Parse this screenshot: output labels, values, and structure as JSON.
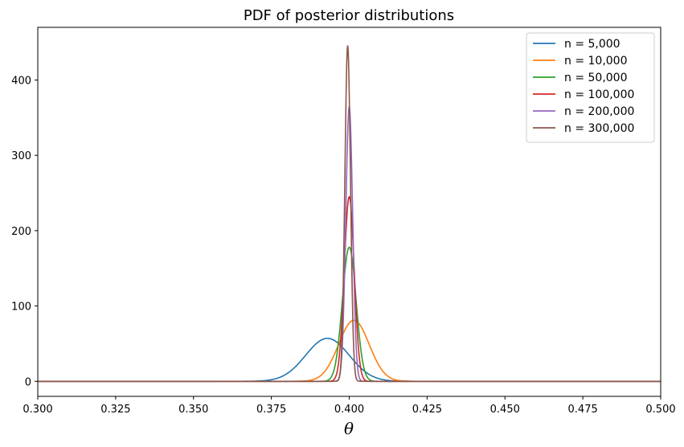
{
  "chart_data": {
    "type": "line",
    "title": "PDF of posterior distributions",
    "xlabel": "θ",
    "ylabel": "",
    "xlim": [
      0.3,
      0.5
    ],
    "ylim": [
      -20,
      470
    ],
    "xticks": [
      "0.300",
      "0.325",
      "0.350",
      "0.375",
      "0.400",
      "0.425",
      "0.450",
      "0.475",
      "0.500"
    ],
    "xtick_values": [
      0.3,
      0.325,
      0.35,
      0.375,
      0.4,
      0.425,
      0.45,
      0.475,
      0.5
    ],
    "yticks": [
      "0",
      "100",
      "200",
      "300",
      "400"
    ],
    "ytick_values": [
      0,
      100,
      200,
      300,
      400
    ],
    "grid": false,
    "legend_position": "top-right",
    "series": [
      {
        "name": "n = 5,000",
        "color": "#1f77b4",
        "peak_x": 0.393,
        "peak_y": 57,
        "sd": 0.007
      },
      {
        "name": "n = 10,000",
        "color": "#ff7f0e",
        "peak_x": 0.4015,
        "peak_y": 81,
        "sd": 0.0049
      },
      {
        "name": "n = 50,000",
        "color": "#2ca02c",
        "peak_x": 0.4,
        "peak_y": 178,
        "sd": 0.0022
      },
      {
        "name": "n = 100,000",
        "color": "#d62728",
        "peak_x": 0.4,
        "peak_y": 245,
        "sd": 0.0016
      },
      {
        "name": "n = 200,000",
        "color": "#9467bd",
        "peak_x": 0.4,
        "peak_y": 365,
        "sd": 0.0011
      },
      {
        "name": "n = 300,000",
        "color": "#8c564b",
        "peak_x": 0.3995,
        "peak_y": 446,
        "sd": 0.0009
      }
    ]
  }
}
